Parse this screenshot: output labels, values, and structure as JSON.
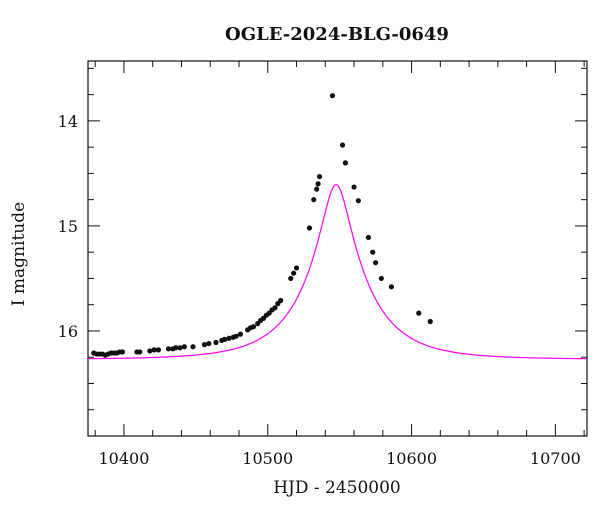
{
  "chart_data": {
    "type": "scatter",
    "title": "OGLE-2024-BLG-0649",
    "xlabel": "HJD - 2450000",
    "ylabel": "I magnitude",
    "xlim": [
      10375,
      10722
    ],
    "ylim": [
      17.0,
      13.43
    ],
    "y_inverted": true,
    "x_ticks": [
      10400,
      10500,
      10600,
      10700
    ],
    "x_tick_labels": [
      "10400",
      "10500",
      "10600",
      "10700"
    ],
    "y_ticks": [
      14,
      15,
      16
    ],
    "y_tick_labels": [
      "14",
      "15",
      "16"
    ],
    "series": [
      {
        "name": "observations",
        "kind": "points",
        "color": "#111111",
        "x": [
          10379,
          10381,
          10383,
          10385,
          10387,
          10389,
          10391,
          10393,
          10395,
          10397,
          10399,
          10409,
          10411,
          10418,
          10421,
          10424,
          10431,
          10434,
          10436,
          10439,
          10442,
          10448,
          10456,
          10459,
          10464,
          10468,
          10470,
          10473,
          10476,
          10478,
          10481,
          10486,
          10488,
          10490,
          10493,
          10495,
          10497,
          10499,
          10501,
          10503,
          10505,
          10507,
          10509,
          10516,
          10518,
          10520,
          10529,
          10532,
          10534,
          10535,
          10536,
          10545,
          10552,
          10554,
          10560,
          10563,
          10570,
          10573,
          10575,
          10579,
          10586,
          10605,
          10613
        ],
        "y": [
          16.21,
          16.22,
          16.22,
          16.22,
          16.23,
          16.22,
          16.21,
          16.21,
          16.21,
          16.2,
          16.2,
          16.2,
          16.2,
          16.19,
          16.18,
          16.18,
          16.17,
          16.17,
          16.16,
          16.16,
          16.15,
          16.15,
          16.13,
          16.12,
          16.11,
          16.09,
          16.08,
          16.07,
          16.06,
          16.05,
          16.03,
          15.99,
          15.97,
          15.96,
          15.93,
          15.9,
          15.88,
          15.85,
          15.83,
          15.8,
          15.78,
          15.74,
          15.71,
          15.5,
          15.45,
          15.4,
          15.02,
          14.75,
          14.65,
          14.6,
          14.53,
          13.76,
          14.23,
          14.4,
          14.63,
          14.76,
          15.11,
          15.25,
          15.35,
          15.5,
          15.58,
          15.83,
          15.91
        ]
      },
      {
        "name": "model",
        "kind": "line",
        "color": "#ff00ff",
        "model_params": {
          "t0": 10547.5,
          "u0": 0.22,
          "tE": 42,
          "baseline_mag": 16.27
        }
      }
    ]
  }
}
